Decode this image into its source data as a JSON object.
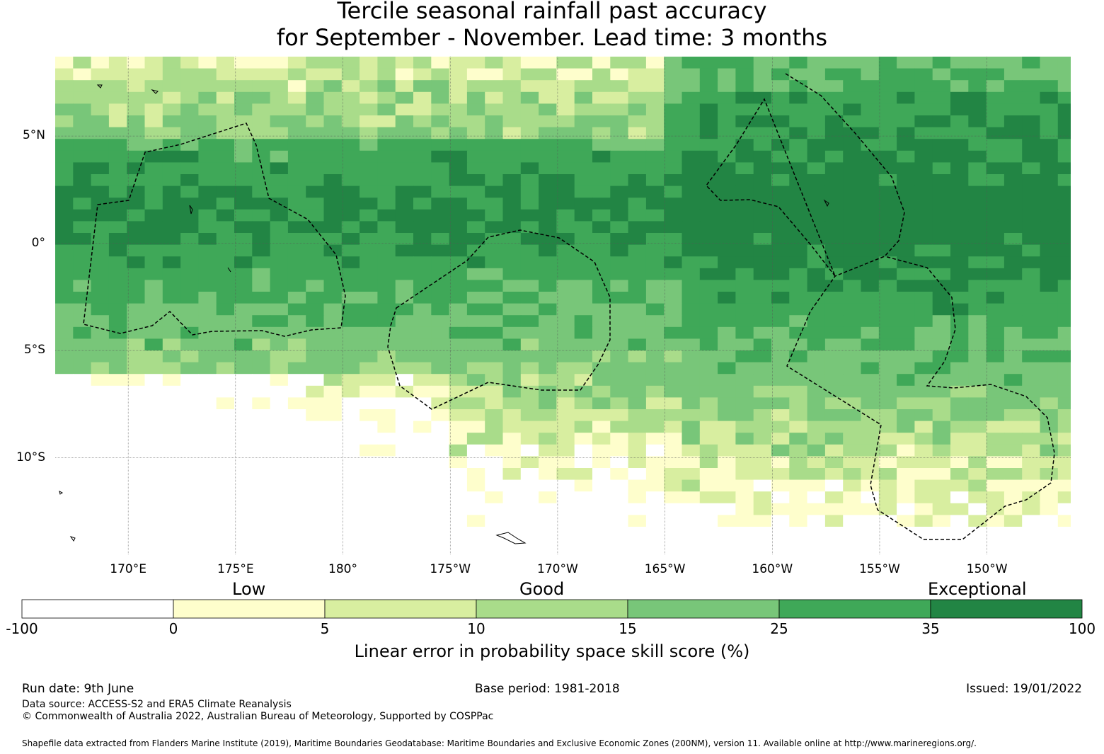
{
  "title": {
    "line1": "Tercile seasonal rainfall past accuracy",
    "line2": "for September - November. Lead time: 3 months"
  },
  "map": {
    "lat_labels": [
      "5°N",
      "0°",
      "5°S",
      "10°S"
    ],
    "lon_labels": [
      "170°E",
      "175°E",
      "180°",
      "175°W",
      "170°W",
      "165°W",
      "160°W",
      "155°W",
      "150°W"
    ],
    "lat_range": [
      -14.5,
      8.7
    ],
    "lon_range": [
      166.6,
      213.9
    ],
    "grid_lons": [
      170,
      175,
      180,
      185,
      190,
      195,
      200,
      205,
      210
    ],
    "grid_lats": [
      5,
      0,
      -5,
      -10
    ],
    "skill_field_note": "",
    "eez_outline_style": "dashed black"
  },
  "colorbar": {
    "categories": [
      "Low",
      "Good",
      "Exceptional"
    ],
    "ticks": [
      "-100",
      "0",
      "5",
      "10",
      "15",
      "25",
      "35",
      "100"
    ],
    "colors": [
      "#ffffff",
      "#fefecc",
      "#d8eea0",
      "#a9dc8a",
      "#78c679",
      "#3fa858",
      "#228544"
    ],
    "label": "Linear error in probability space skill score (%)"
  },
  "footer": {
    "run_date": "Run date: 9th June",
    "base_period": "Base period: 1981-2018",
    "issued": "Issued: 19/01/2022",
    "data_source": "Data source: ACCESS-S2 and ERA5 Climate Reanalysis",
    "copyright": "© Commonwealth of Australia 2022, Australian Bureau of Meteorology, Supported by COSPPac",
    "shapefile": "Shapefile data extracted from Flanders Marine Institute (2019), Maritime Boundaries Geodatabase: Maritime Boundaries and Exclusive Economic Zones (200NM), version 11. Available online at http://www.marineregions.org/."
  }
}
